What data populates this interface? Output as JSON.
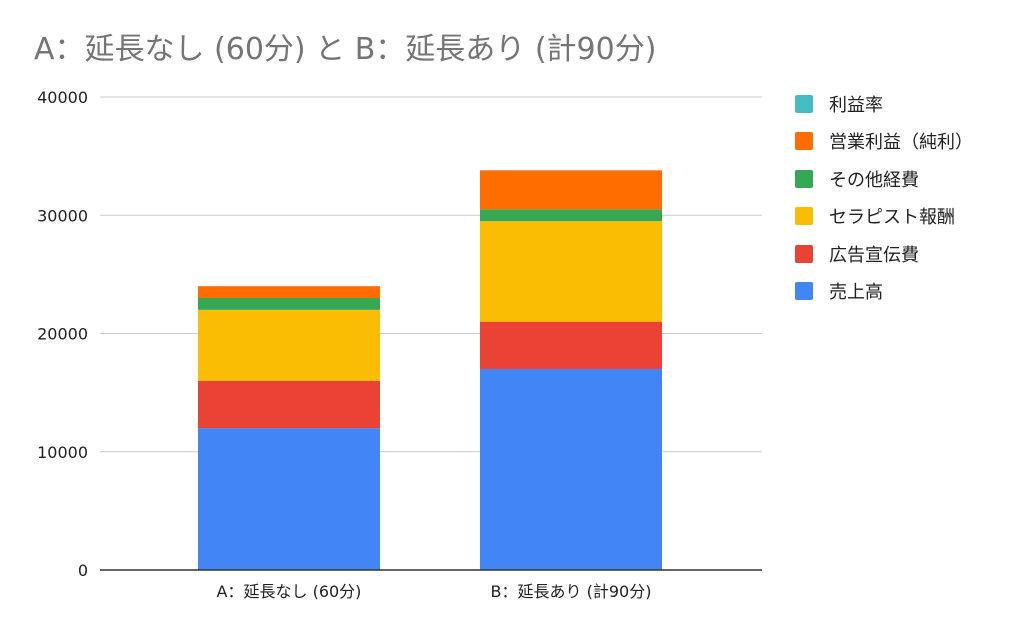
{
  "chart_data": {
    "type": "bar",
    "stacked": true,
    "title": "A：延長なし (60分) と B：延長あり (計90分)",
    "categories": [
      "A：延長なし (60分)",
      "B：延長あり (計90分)"
    ],
    "series": [
      {
        "name": "売上高",
        "color": "#4285F4",
        "values": [
          12000,
          17000
        ]
      },
      {
        "name": "広告宣伝費",
        "color": "#EA4335",
        "values": [
          4000,
          4000
        ]
      },
      {
        "name": "セラピスト報酬",
        "color": "#FBBC04",
        "values": [
          6000,
          8500
        ]
      },
      {
        "name": "その他経費",
        "color": "#34A853",
        "values": [
          1000,
          1000
        ]
      },
      {
        "name": "営業利益（純利）",
        "color": "#FF6D01",
        "values": [
          1000,
          3300
        ]
      },
      {
        "name": "利益率",
        "color": "#46BDC6",
        "values": [
          0,
          0
        ]
      }
    ],
    "legend_order": [
      5,
      4,
      3,
      2,
      1,
      0
    ],
    "ylim": [
      0,
      40000
    ],
    "yticks": [
      0,
      10000,
      20000,
      30000,
      40000
    ],
    "grid": true,
    "legend_position": "right"
  }
}
